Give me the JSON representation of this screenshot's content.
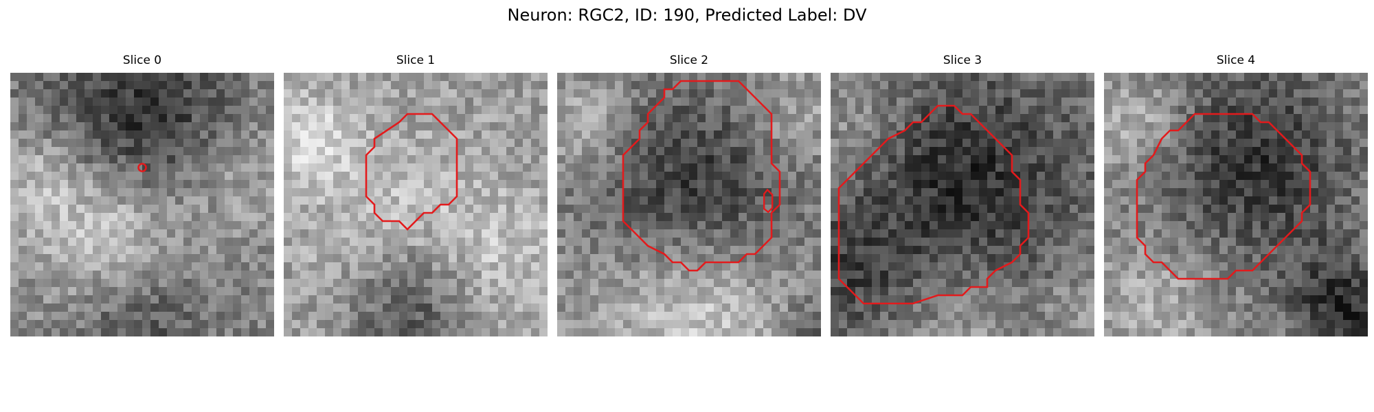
{
  "figure": {
    "title": "Neuron: RGC2, ID: 190, Predicted Label: DV"
  },
  "panels": [
    {
      "title": "Slice 0",
      "seed": 11,
      "base": 0.52
    },
    {
      "title": "Slice 1",
      "seed": 23,
      "base": 0.62
    },
    {
      "title": "Slice 2",
      "seed": 37,
      "base": 0.55
    },
    {
      "title": "Slice 3",
      "seed": 51,
      "base": 0.5
    },
    {
      "title": "Slice 4",
      "seed": 67,
      "base": 0.56
    }
  ],
  "colors": {
    "contour": "#e31a1c",
    "marker": "#e31a1c"
  }
}
